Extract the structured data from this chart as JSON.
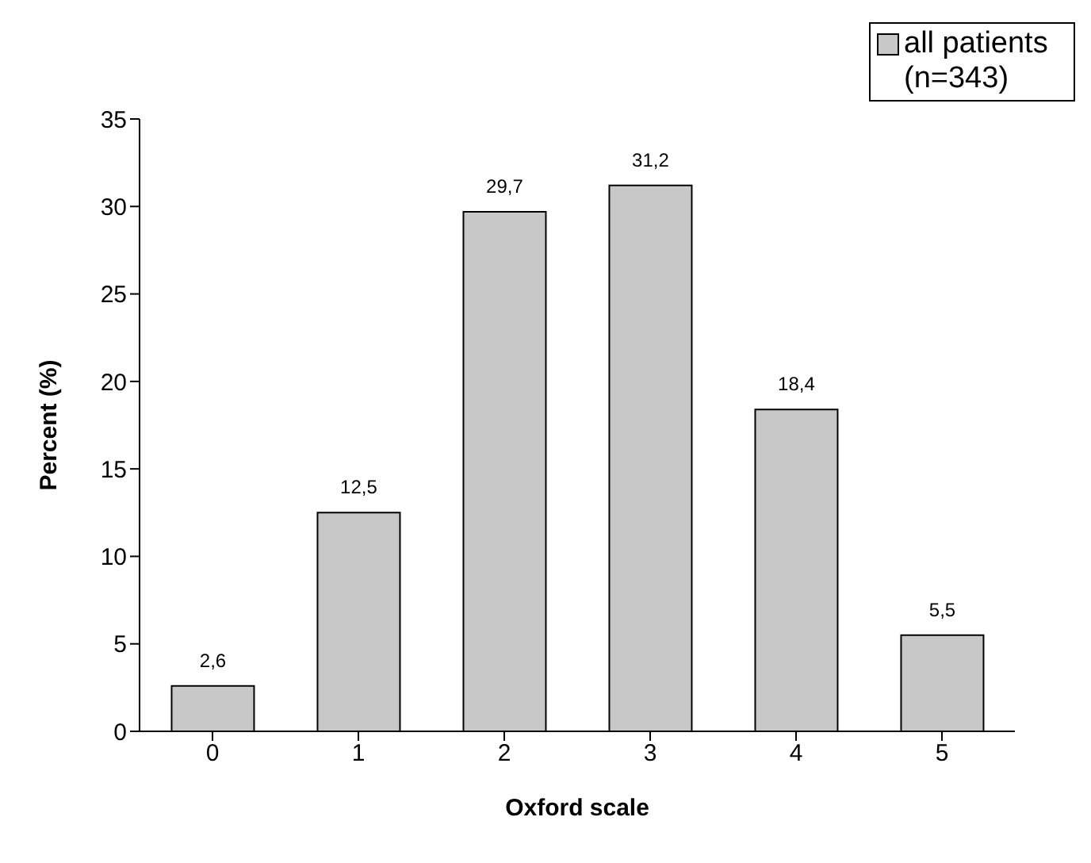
{
  "chart_data": {
    "type": "bar",
    "xlabel": "Oxford scale",
    "ylabel": "Percent (%)",
    "categories": [
      "0",
      "1",
      "2",
      "3",
      "4",
      "5"
    ],
    "series": [
      {
        "name": "all patients (n=343)",
        "color": "#c8c8c8",
        "values": [
          2.6,
          12.5,
          29.7,
          31.2,
          18.4,
          5.5
        ],
        "value_labels": [
          "2,6",
          "12,5",
          "29,7",
          "31,2",
          "18,4",
          "5,5"
        ]
      }
    ],
    "ylim": [
      0,
      35
    ],
    "yticks": [
      0,
      5,
      10,
      15,
      20,
      25,
      30,
      35
    ],
    "legend": "top right"
  }
}
